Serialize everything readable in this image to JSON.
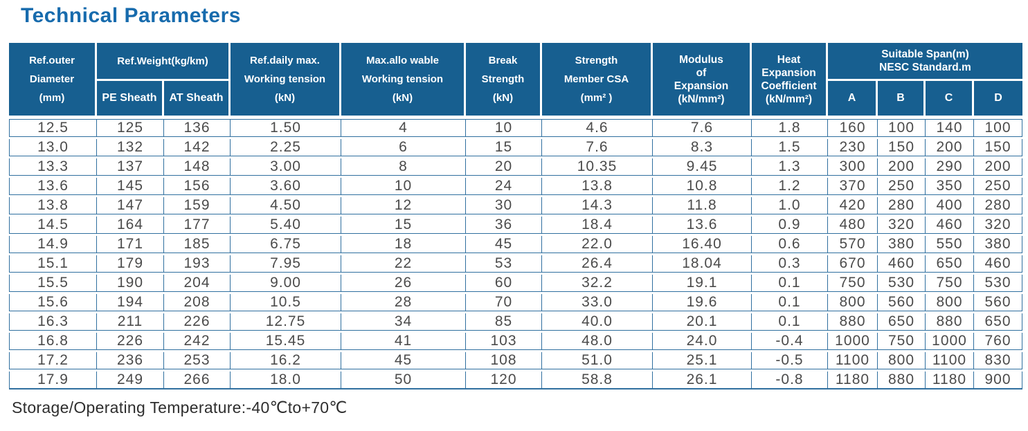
{
  "page": {
    "title": "Technical Parameters",
    "footer": "Storage/Operating Temperature:-40℃to+70℃"
  },
  "colors": {
    "header_bg": "#175F90",
    "title_color": "#176BAD",
    "grid_line": "#2F6F9F",
    "data_text": "#4B4B4B"
  },
  "table": {
    "header": {
      "diameter": "Ref.outer\nDiameter\n(mm)",
      "weight_group": "Ref.Weight(kg/km)",
      "pe_sheath": "PE Sheath",
      "at_sheath": "AT Sheath",
      "daily_tension": "Ref.daily max.\nWorking tension\n(kN)",
      "max_tension": "Max.allo wable\nWorking tension\n(kN)",
      "break_strength": "Break\nStrength\n(kN)",
      "member_csa": "Strength\nMember CSA\n(mm² )",
      "modulus": "Modulus\nof\nExpansion\n(kN/mm²)",
      "heat_coefficient": "Heat\nExpansion\nCoefficient\n(kN/mm²)",
      "span_group": "Suitable Span(m)\nNESC Standard.m",
      "span_a": "A",
      "span_b": "B",
      "span_c": "C",
      "span_d": "D"
    },
    "rows": [
      [
        "12.5",
        "125",
        "136",
        "1.50",
        "4",
        "10",
        "4.6",
        "7.6",
        "1.8",
        "160",
        "100",
        "140",
        "100"
      ],
      [
        "13.0",
        "132",
        "142",
        "2.25",
        "6",
        "15",
        "7.6",
        "8.3",
        "1.5",
        "230",
        "150",
        "200",
        "150"
      ],
      [
        "13.3",
        "137",
        "148",
        "3.00",
        "8",
        "20",
        "10.35",
        "9.45",
        "1.3",
        "300",
        "200",
        "290",
        "200"
      ],
      [
        "13.6",
        "145",
        "156",
        "3.60",
        "10",
        "24",
        "13.8",
        "10.8",
        "1.2",
        "370",
        "250",
        "350",
        "250"
      ],
      [
        "13.8",
        "147",
        "159",
        "4.50",
        "12",
        "30",
        "14.3",
        "11.8",
        "1.0",
        "420",
        "280",
        "400",
        "280"
      ],
      [
        "14.5",
        "164",
        "177",
        "5.40",
        "15",
        "36",
        "18.4",
        "13.6",
        "0.9",
        "480",
        "320",
        "460",
        "320"
      ],
      [
        "14.9",
        "171",
        "185",
        "6.75",
        "18",
        "45",
        "22.0",
        "16.40",
        "0.6",
        "570",
        "380",
        "550",
        "380"
      ],
      [
        "15.1",
        "179",
        "193",
        "7.95",
        "22",
        "53",
        "26.4",
        "18.04",
        "0.3",
        "670",
        "460",
        "650",
        "460"
      ],
      [
        "15.5",
        "190",
        "204",
        "9.00",
        "26",
        "60",
        "32.2",
        "19.1",
        "0.1",
        "750",
        "530",
        "750",
        "530"
      ],
      [
        "15.6",
        "194",
        "208",
        "10.5",
        "28",
        "70",
        "33.0",
        "19.6",
        "0.1",
        "800",
        "560",
        "800",
        "560"
      ],
      [
        "16.3",
        "211",
        "226",
        "12.75",
        "34",
        "85",
        "40.0",
        "20.1",
        "0.1",
        "880",
        "650",
        "880",
        "650"
      ],
      [
        "16.8",
        "226",
        "242",
        "15.45",
        "41",
        "103",
        "48.0",
        "24.0",
        "-0.4",
        "1000",
        "750",
        "1000",
        "760"
      ],
      [
        "17.2",
        "236",
        "253",
        "16.2",
        "45",
        "108",
        "51.0",
        "25.1",
        "-0.5",
        "1100",
        "800",
        "1100",
        "830"
      ],
      [
        "17.9",
        "249",
        "266",
        "18.0",
        "50",
        "120",
        "58.8",
        "26.1",
        "-0.8",
        "1180",
        "880",
        "1180",
        "900"
      ]
    ]
  }
}
